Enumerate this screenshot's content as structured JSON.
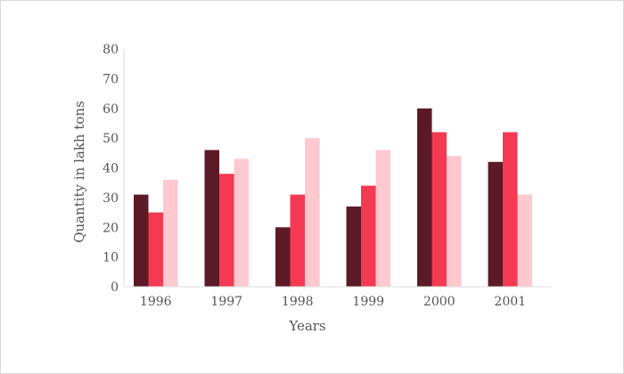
{
  "chart_data": {
    "type": "bar",
    "title": "",
    "xlabel": "Years",
    "ylabel": "Quantity in lakh tons",
    "categories": [
      "1996",
      "1997",
      "1998",
      "1999",
      "2000",
      "2001"
    ],
    "ylim": [
      0,
      80
    ],
    "yticks": [
      0,
      10,
      20,
      30,
      40,
      50,
      60,
      70,
      80
    ],
    "grid": false,
    "legend": "none",
    "series": [
      {
        "color": "#5c1a26",
        "values": [
          31,
          46,
          20,
          27,
          60,
          42
        ]
      },
      {
        "color": "#f43a52",
        "values": [
          25,
          38,
          31,
          34,
          52,
          52
        ]
      },
      {
        "color": "#ffc9cf",
        "values": [
          36,
          43,
          50,
          46,
          44,
          31
        ]
      }
    ]
  }
}
